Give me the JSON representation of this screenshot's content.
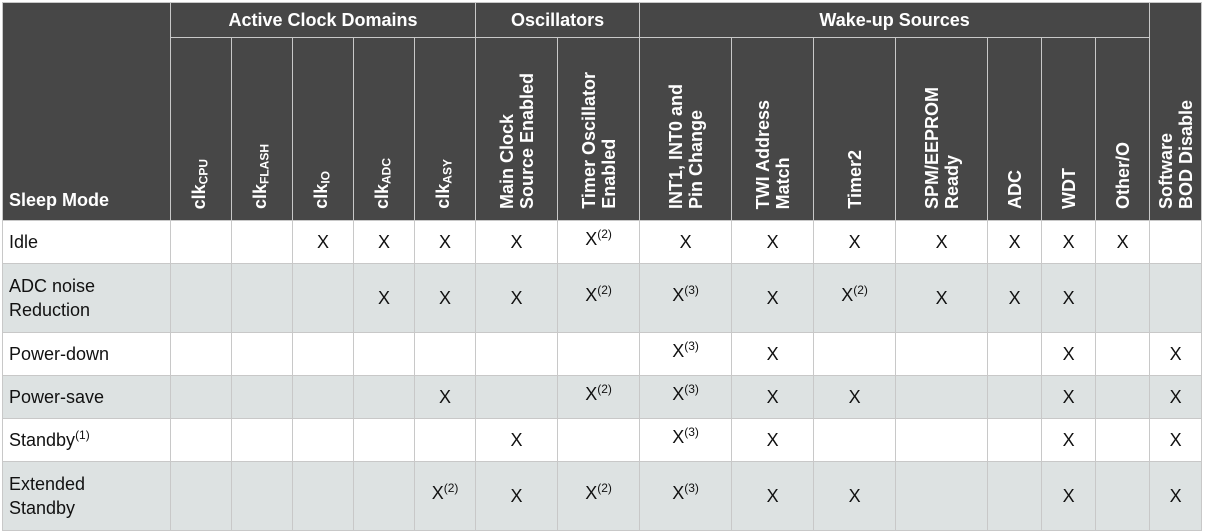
{
  "header": {
    "row_label": "Sleep Mode",
    "groups": [
      "Active Clock Domains",
      "Oscillators",
      "Wake-up Sources"
    ],
    "columns": [
      {
        "base": "clk",
        "sub": "CPU"
      },
      {
        "base": "clk",
        "sub": "FLASH"
      },
      {
        "base": "clk",
        "sub": "IO"
      },
      {
        "base": "clk",
        "sub": "ADC"
      },
      {
        "base": "clk",
        "sub": "ASY"
      },
      {
        "text": "Main Clock\nSource Enabled"
      },
      {
        "text": "Timer Oscillator\nEnabled"
      },
      {
        "text": "INT1, INT0 and\nPin Change"
      },
      {
        "text": "TWI Address\nMatch"
      },
      {
        "text": "Timer2"
      },
      {
        "text": "SPM/EEPROM\nReady"
      },
      {
        "text": "ADC"
      },
      {
        "text": "WDT"
      },
      {
        "text": "Other/O"
      },
      {
        "text": "Software\nBOD Disable"
      }
    ]
  },
  "rows": [
    {
      "mode": "Idle",
      "note": "",
      "cells": [
        "",
        "",
        "X",
        "X",
        "X",
        "X",
        "X|2",
        "X",
        "X",
        "X",
        "X",
        "X",
        "X",
        "X",
        ""
      ]
    },
    {
      "mode": "ADC noise\nReduction",
      "note": "",
      "cells": [
        "",
        "",
        "",
        "X",
        "X",
        "X",
        "X|2",
        "X|3",
        "X",
        "X|2",
        "X",
        "X",
        "X",
        "",
        ""
      ]
    },
    {
      "mode": "Power-down",
      "note": "",
      "cells": [
        "",
        "",
        "",
        "",
        "",
        "",
        "",
        "X|3",
        "X",
        "",
        "",
        "",
        "X",
        "",
        "X"
      ]
    },
    {
      "mode": "Power-save",
      "note": "",
      "cells": [
        "",
        "",
        "",
        "",
        "X",
        "",
        "X|2",
        "X|3",
        "X",
        "X",
        "",
        "",
        "X",
        "",
        "X"
      ]
    },
    {
      "mode": "Standby",
      "note": "(1)",
      "cells": [
        "",
        "",
        "",
        "",
        "",
        "X",
        "",
        "X|3",
        "X",
        "",
        "",
        "",
        "X",
        "",
        "X"
      ]
    },
    {
      "mode": "Extended\nStandby",
      "note": "",
      "cells": [
        "",
        "",
        "",
        "",
        "X|2",
        "X",
        "X|2",
        "X|3",
        "X",
        "X",
        "",
        "",
        "X",
        "",
        "X"
      ]
    }
  ]
}
